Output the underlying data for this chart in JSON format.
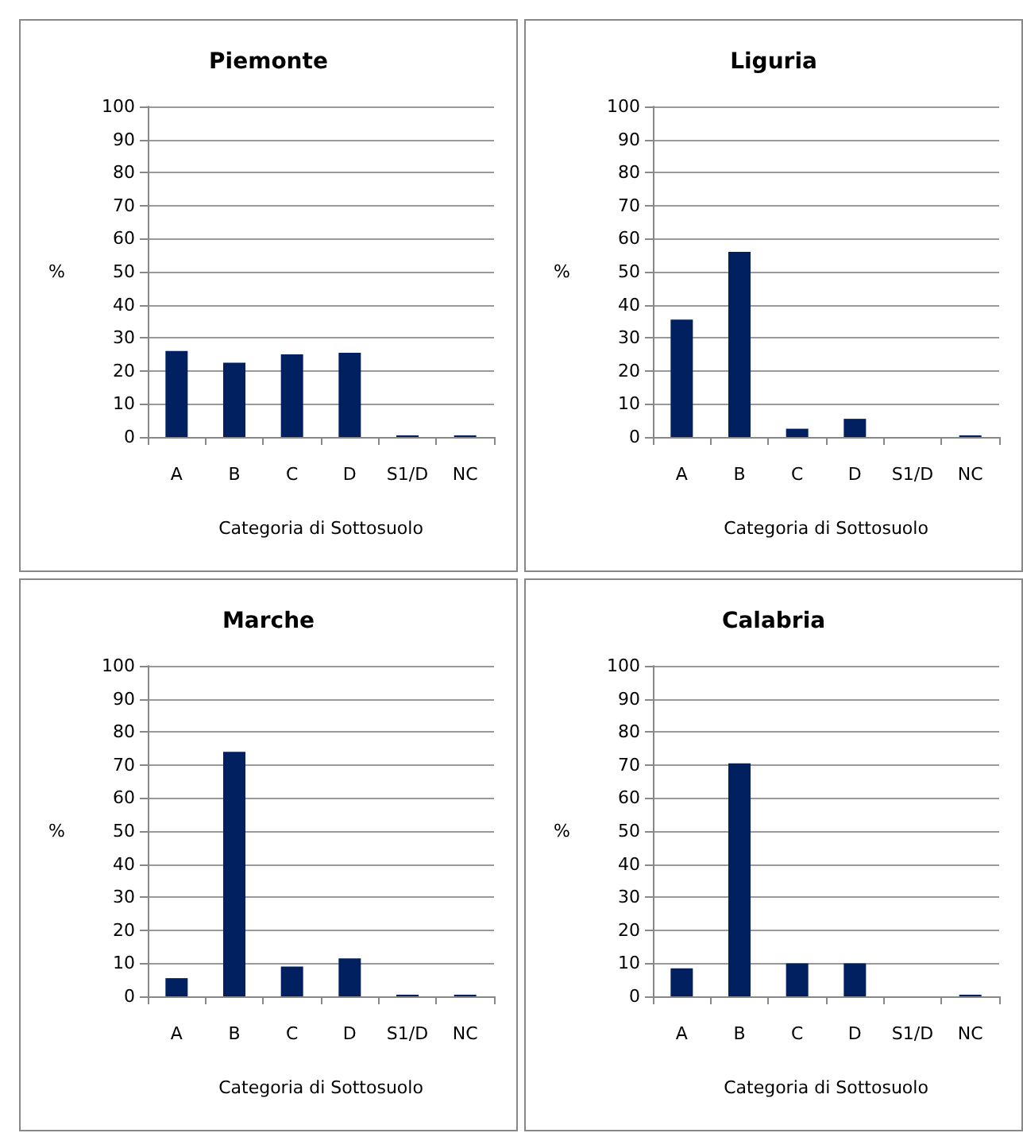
{
  "chart_data": [
    {
      "type": "bar",
      "title": "Piemonte",
      "xlabel": "Categoria di Sottosuolo",
      "ylabel": "%",
      "categories": [
        "A",
        "B",
        "C",
        "D",
        "S1/D",
        "NC"
      ],
      "values": [
        26,
        22.5,
        25,
        25.5,
        0.5,
        0.5
      ],
      "color": "#002060",
      "ylim": [
        0,
        100
      ],
      "yticks": [
        0,
        10,
        20,
        30,
        40,
        50,
        60,
        70,
        80,
        90,
        100
      ],
      "grid": "y"
    },
    {
      "type": "bar",
      "title": "Liguria",
      "xlabel": "Categoria di Sottosuolo",
      "ylabel": "%",
      "categories": [
        "A",
        "B",
        "C",
        "D",
        "S1/D",
        "NC"
      ],
      "values": [
        35.5,
        56,
        2.5,
        5.5,
        0,
        0.5
      ],
      "color": "#002060",
      "ylim": [
        0,
        100
      ],
      "yticks": [
        0,
        10,
        20,
        30,
        40,
        50,
        60,
        70,
        80,
        90,
        100
      ],
      "grid": "y"
    },
    {
      "type": "bar",
      "title": "Marche",
      "xlabel": "Categoria di Sottosuolo",
      "ylabel": "%",
      "categories": [
        "A",
        "B",
        "C",
        "D",
        "S1/D",
        "NC"
      ],
      "values": [
        5.5,
        74,
        9,
        11.5,
        0.5,
        0.5
      ],
      "color": "#002060",
      "ylim": [
        0,
        100
      ],
      "yticks": [
        0,
        10,
        20,
        30,
        40,
        50,
        60,
        70,
        80,
        90,
        100
      ],
      "grid": "y"
    },
    {
      "type": "bar",
      "title": "Calabria",
      "xlabel": "Categoria di Sottosuolo",
      "ylabel": "%",
      "categories": [
        "A",
        "B",
        "C",
        "D",
        "S1/D",
        "NC"
      ],
      "values": [
        8.5,
        70.5,
        10,
        10,
        0,
        0.5
      ],
      "color": "#002060",
      "ylim": [
        0,
        100
      ],
      "yticks": [
        0,
        10,
        20,
        30,
        40,
        50,
        60,
        70,
        80,
        90,
        100
      ],
      "grid": "y"
    }
  ]
}
